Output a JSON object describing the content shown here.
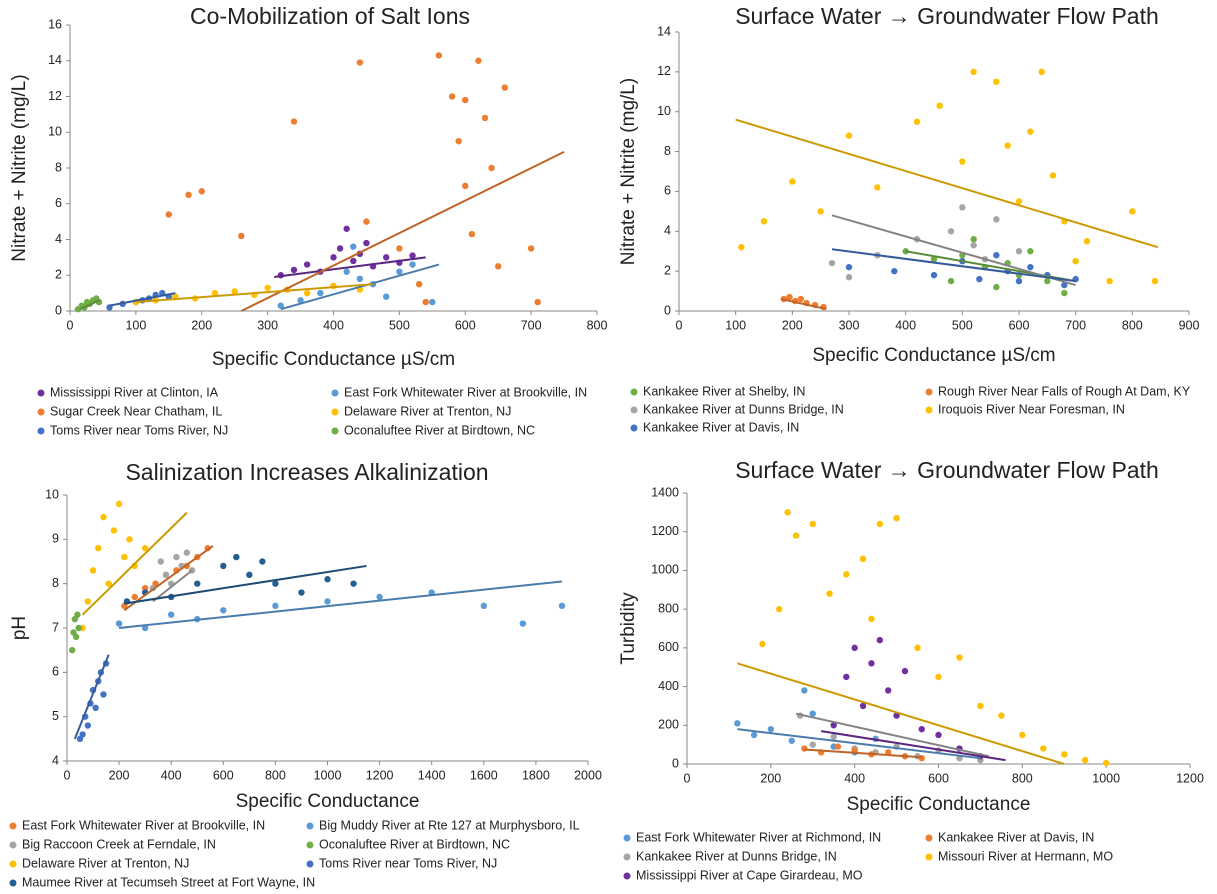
{
  "chart_data": [
    {
      "type": "scatter",
      "title": "Co-Mobilization of Salt Ions",
      "x_label": "Specific Conductance µS/cm",
      "y_label": "Nitrate + Nitrite (mg/L)",
      "xlim": [
        0,
        800
      ],
      "xticks": [
        0,
        100,
        200,
        300,
        400,
        500,
        600,
        700,
        800
      ],
      "ylim": [
        0,
        16
      ],
      "yticks": [
        0,
        2,
        4,
        6,
        8,
        10,
        12,
        14,
        16
      ],
      "grid": false,
      "series": [
        {
          "name": "Mississippi River at Clinton, IA",
          "color": "#7030a0",
          "x": [
            320,
            340,
            360,
            380,
            400,
            410,
            420,
            430,
            440,
            450,
            460,
            480,
            500,
            520
          ],
          "y": [
            2.0,
            2.3,
            2.6,
            2.2,
            3.0,
            3.5,
            4.6,
            2.8,
            3.2,
            3.8,
            2.5,
            3.0,
            2.7,
            3.1
          ],
          "trend": {
            "x": [
              310,
              540
            ],
            "y": [
              1.9,
              3.0
            ]
          }
        },
        {
          "name": "Sugar Creek Near Chatham, IL",
          "color": "#ed7d31",
          "x": [
            150,
            180,
            200,
            260,
            340,
            440,
            450,
            500,
            530,
            560,
            580,
            590,
            600,
            610,
            620,
            630,
            640,
            650,
            660,
            700,
            710,
            540,
            600
          ],
          "y": [
            5.4,
            6.5,
            6.7,
            4.2,
            10.6,
            13.9,
            5.0,
            3.5,
            1.5,
            14.3,
            12.0,
            9.5,
            11.8,
            4.3,
            14.0,
            10.8,
            8.0,
            2.5,
            12.5,
            3.5,
            0.5,
            0.5,
            7.0
          ],
          "trend": {
            "x": [
              260,
              750
            ],
            "y": [
              0,
              8.9
            ]
          }
        },
        {
          "name": "Toms River near Toms River, NJ",
          "color": "#4472c4",
          "x": [
            60,
            80,
            100,
            110,
            120,
            130,
            140,
            150
          ],
          "y": [
            0.2,
            0.4,
            0.5,
            0.6,
            0.7,
            0.9,
            1.0,
            0.8
          ],
          "trend": {
            "x": [
              60,
              160
            ],
            "y": [
              0.3,
              1.0
            ]
          }
        },
        {
          "name": "East Fork Whitewater River at Brookville, IN",
          "color": "#5b9bd5",
          "x": [
            320,
            350,
            380,
            400,
            420,
            430,
            440,
            460,
            480,
            500,
            520,
            550
          ],
          "y": [
            0.3,
            0.6,
            1.0,
            1.4,
            2.2,
            3.6,
            1.8,
            1.5,
            0.8,
            2.2,
            2.6,
            0.5
          ],
          "trend": {
            "x": [
              320,
              560
            ],
            "y": [
              0.1,
              2.6
            ]
          }
        },
        {
          "name": "Delaware River at Trenton, NJ",
          "color": "#ffc000",
          "x": [
            100,
            130,
            160,
            190,
            220,
            250,
            280,
            300,
            330,
            360,
            400,
            440
          ],
          "y": [
            0.5,
            0.6,
            0.8,
            0.7,
            1.0,
            1.1,
            0.9,
            1.3,
            1.2,
            1.0,
            1.4,
            1.2
          ],
          "trend": {
            "x": [
              100,
              460
            ],
            "y": [
              0.5,
              1.5
            ]
          }
        },
        {
          "name": "Oconaluftee River at Birdtown, NC",
          "color": "#70ad47",
          "x": [
            12,
            18,
            22,
            26,
            30,
            35,
            40,
            44
          ],
          "y": [
            0.1,
            0.3,
            0.2,
            0.5,
            0.4,
            0.6,
            0.7,
            0.5
          ],
          "trend": {
            "x": [
              15,
              45
            ],
            "y": [
              0.1,
              0.6
            ]
          }
        }
      ]
    },
    {
      "type": "scatter",
      "title": "Surface Water → Groundwater Flow Path",
      "x_label": "Specific Conductance µS/cm",
      "y_label": "Nitrate + Nitrite (mg/L)",
      "xlim": [
        0,
        900
      ],
      "xticks": [
        0,
        100,
        200,
        300,
        400,
        500,
        600,
        700,
        800,
        900
      ],
      "ylim": [
        0,
        14
      ],
      "yticks": [
        0,
        2,
        4,
        6,
        8,
        10,
        12,
        14
      ],
      "grid": false,
      "series": [
        {
          "name": "Kankakee River at Shelby, IN",
          "color": "#70ad47",
          "x": [
            400,
            450,
            480,
            500,
            520,
            540,
            560,
            580,
            600,
            620,
            650,
            680
          ],
          "y": [
            3.0,
            2.6,
            1.5,
            2.8,
            3.6,
            2.2,
            1.2,
            2.4,
            1.8,
            3.0,
            1.5,
            0.9
          ],
          "trend": {
            "x": [
              400,
              700
            ],
            "y": [
              3.0,
              1.5
            ]
          }
        },
        {
          "name": "Kankakee River at Dunns Bridge, IN",
          "color": "#a5a5a5",
          "x": [
            270,
            300,
            350,
            420,
            480,
            500,
            520,
            540,
            560,
            580,
            600
          ],
          "y": [
            2.4,
            1.7,
            2.8,
            3.6,
            4.0,
            5.2,
            3.3,
            2.6,
            4.6,
            2.0,
            3.0
          ],
          "trend": {
            "x": [
              270,
              700
            ],
            "y": [
              4.8,
              1.3
            ]
          }
        },
        {
          "name": "Kankakee River at Davis, IN",
          "color": "#4472c4",
          "x": [
            300,
            380,
            450,
            500,
            530,
            560,
            580,
            600,
            620,
            650,
            680,
            700
          ],
          "y": [
            2.2,
            2.0,
            1.8,
            2.5,
            1.6,
            2.8,
            2.0,
            1.5,
            2.2,
            1.8,
            1.3,
            1.6
          ],
          "trend": {
            "x": [
              270,
              700
            ],
            "y": [
              3.1,
              1.5
            ]
          }
        },
        {
          "name": "Rough River Near Falls of Rough At Dam, KY",
          "color": "#ed7d31",
          "x": [
            185,
            195,
            205,
            215,
            225,
            240,
            255
          ],
          "y": [
            0.6,
            0.7,
            0.5,
            0.6,
            0.4,
            0.3,
            0.2
          ],
          "trend": {
            "x": [
              180,
              260
            ],
            "y": [
              0.6,
              0.1
            ]
          }
        },
        {
          "name": "Iroquois River Near Foresman, IN",
          "color": "#ffc000",
          "x": [
            110,
            150,
            200,
            250,
            300,
            350,
            420,
            460,
            500,
            520,
            560,
            580,
            600,
            620,
            640,
            660,
            680,
            700,
            720,
            760,
            800,
            840
          ],
          "y": [
            3.2,
            4.5,
            6.5,
            5.0,
            8.8,
            6.2,
            9.5,
            10.3,
            7.5,
            12.0,
            11.5,
            8.3,
            5.5,
            9.0,
            12.0,
            6.8,
            4.5,
            2.5,
            3.5,
            1.5,
            5.0,
            1.5
          ],
          "trend": {
            "x": [
              100,
              845
            ],
            "y": [
              9.6,
              3.2
            ]
          }
        }
      ]
    },
    {
      "type": "scatter",
      "title": "Salinization Increases Alkalinization",
      "x_label": "Specific Conductance",
      "y_label": "pH",
      "xlim": [
        0,
        2000
      ],
      "xticks": [
        0,
        200,
        400,
        600,
        800,
        1000,
        1200,
        1400,
        1600,
        1800,
        2000
      ],
      "ylim": [
        4,
        10
      ],
      "yticks": [
        4,
        5,
        6,
        7,
        8,
        9,
        10
      ],
      "grid": false,
      "series": [
        {
          "name": "East Fork Whitewater River at Brookville, IN",
          "color": "#ed7d31",
          "x": [
            220,
            260,
            300,
            340,
            380,
            420,
            460,
            500,
            540
          ],
          "y": [
            7.5,
            7.7,
            7.9,
            8.0,
            8.2,
            8.3,
            8.4,
            8.6,
            8.8
          ],
          "trend": {
            "x": [
              220,
              560
            ],
            "y": [
              7.4,
              8.85
            ]
          }
        },
        {
          "name": "Big Raccoon Creek at Ferndale, IN",
          "color": "#a5a5a5",
          "x": [
            330,
            360,
            380,
            400,
            420,
            440,
            460,
            480
          ],
          "y": [
            7.9,
            8.5,
            8.2,
            8.0,
            8.6,
            8.4,
            8.7,
            8.3
          ],
          "trend": {
            "x": [
              330,
              480
            ],
            "y": [
              7.6,
              8.3
            ]
          }
        },
        {
          "name": "Delaware River at Trenton, NJ",
          "color": "#ffc000",
          "x": [
            60,
            80,
            100,
            120,
            140,
            160,
            180,
            200,
            220,
            240,
            260,
            300
          ],
          "y": [
            7.0,
            7.6,
            8.3,
            8.8,
            9.5,
            8.0,
            9.2,
            9.8,
            8.6,
            9.0,
            8.4,
            8.8
          ],
          "trend": {
            "x": [
              60,
              460
            ],
            "y": [
              7.3,
              9.6
            ]
          }
        },
        {
          "name": "Maumee River at Tecumseh Street at Fort Wayne, IN",
          "color": "#255e91",
          "x": [
            230,
            300,
            400,
            500,
            600,
            650,
            700,
            750,
            800,
            900,
            1000,
            1100
          ],
          "y": [
            7.6,
            7.8,
            7.7,
            8.0,
            8.4,
            8.6,
            8.2,
            8.5,
            8.0,
            7.8,
            8.1,
            8.0
          ],
          "trend": {
            "x": [
              220,
              1150
            ],
            "y": [
              7.55,
              8.4
            ]
          }
        },
        {
          "name": "Big Muddy River at Rte 127 at Murphysboro, IL",
          "color": "#5b9bd5",
          "x": [
            200,
            300,
            400,
            500,
            600,
            800,
            1000,
            1200,
            1400,
            1600,
            1750,
            1900
          ],
          "y": [
            7.1,
            7.0,
            7.3,
            7.2,
            7.4,
            7.5,
            7.6,
            7.7,
            7.8,
            7.5,
            7.1,
            7.5
          ],
          "trend": {
            "x": [
              200,
              1900
            ],
            "y": [
              7.0,
              8.05
            ]
          }
        },
        {
          "name": "Oconaluftee River at Birdtown, NC",
          "color": "#70ad47",
          "x": [
            20,
            25,
            30,
            35,
            40,
            45
          ],
          "y": [
            6.5,
            6.9,
            7.2,
            6.8,
            7.3,
            7.0
          ]
        },
        {
          "name": "Toms River near Toms River, NJ",
          "color": "#4472c4",
          "x": [
            50,
            60,
            70,
            80,
            90,
            100,
            110,
            120,
            130,
            140,
            150
          ],
          "y": [
            4.5,
            4.6,
            5.0,
            4.8,
            5.3,
            5.6,
            5.2,
            5.8,
            6.0,
            5.5,
            6.2
          ],
          "trend": {
            "x": [
              30,
              160
            ],
            "y": [
              4.5,
              6.4
            ]
          }
        }
      ]
    },
    {
      "type": "scatter",
      "title": "Surface Water → Groundwater Flow Path",
      "x_label": "Specific Conductance",
      "y_label": "Turbidity",
      "xlim": [
        0,
        1200
      ],
      "xticks": [
        0,
        200,
        400,
        600,
        800,
        1000,
        1200
      ],
      "ylim": [
        0,
        1400
      ],
      "yticks": [
        0,
        200,
        400,
        600,
        800,
        1000,
        1200,
        1400
      ],
      "grid": false,
      "series": [
        {
          "name": "East Fork Whitewater River at Richmond, IN",
          "color": "#5b9bd5",
          "x": [
            120,
            160,
            200,
            250,
            280,
            300,
            350,
            400,
            450
          ],
          "y": [
            210,
            150,
            180,
            120,
            380,
            260,
            90,
            60,
            130
          ],
          "trend": {
            "x": [
              120,
              700
            ],
            "y": [
              180,
              30
            ]
          }
        },
        {
          "name": "Kankakee River at Dunns Bridge, IN",
          "color": "#a5a5a5",
          "x": [
            270,
            300,
            350,
            400,
            450,
            500,
            550,
            600,
            650,
            700
          ],
          "y": [
            250,
            100,
            140,
            80,
            60,
            90,
            40,
            70,
            30,
            20
          ],
          "trend": {
            "x": [
              260,
              720
            ],
            "y": [
              260,
              40
            ]
          }
        },
        {
          "name": "Mississippi River at Cape Girardeau, MO",
          "color": "#7030a0",
          "x": [
            350,
            380,
            400,
            420,
            440,
            460,
            480,
            500,
            520,
            560,
            600,
            650,
            700
          ],
          "y": [
            200,
            450,
            600,
            300,
            520,
            640,
            380,
            250,
            480,
            180,
            150,
            80,
            40
          ],
          "trend": {
            "x": [
              320,
              760
            ],
            "y": [
              170,
              20
            ]
          }
        },
        {
          "name": "Kankakee River at Davis, IN",
          "color": "#ed7d31",
          "x": [
            280,
            320,
            360,
            400,
            440,
            480,
            520,
            560
          ],
          "y": [
            80,
            60,
            90,
            70,
            50,
            60,
            40,
            30
          ],
          "trend": {
            "x": [
              280,
              560
            ],
            "y": [
              75,
              35
            ]
          }
        },
        {
          "name": "Missouri River at Hermann, MO",
          "color": "#ffc000",
          "x": [
            180,
            220,
            240,
            260,
            300,
            340,
            380,
            420,
            440,
            460,
            500,
            550,
            600,
            650,
            700,
            750,
            800,
            850,
            900,
            950,
            1000
          ],
          "y": [
            620,
            800,
            1300,
            1180,
            1240,
            880,
            980,
            1060,
            750,
            1240,
            1270,
            600,
            450,
            550,
            300,
            250,
            150,
            80,
            50,
            20,
            5
          ],
          "trend": {
            "x": [
              120,
              900
            ],
            "y": [
              520,
              0
            ]
          }
        }
      ]
    }
  ]
}
